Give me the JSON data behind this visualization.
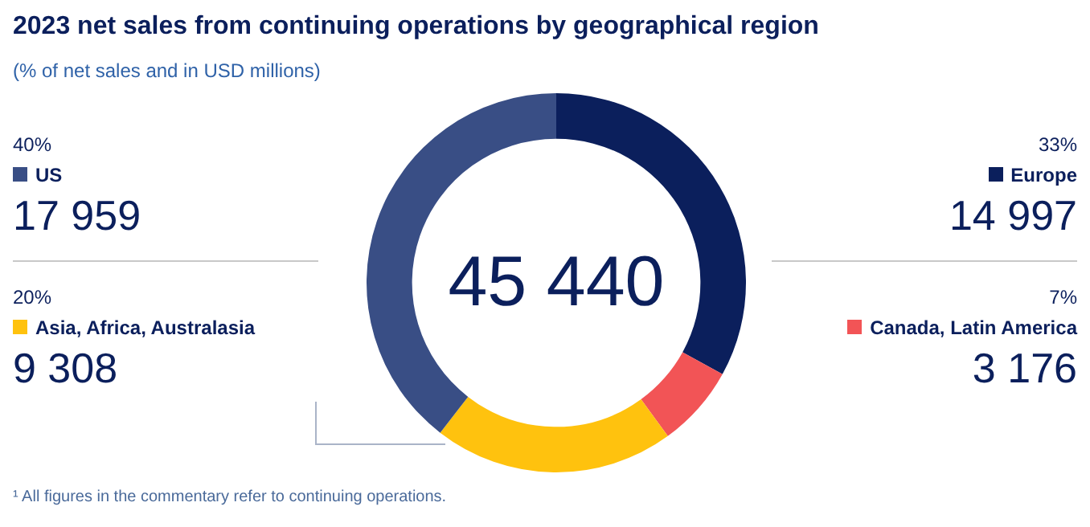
{
  "chart_data": {
    "type": "donut",
    "title": "2023 net sales from continuing operations by geographical region",
    "subtitle": "(% of net sales and in USD millions)",
    "categories": [
      "Europe",
      "Canada, Latin America",
      "Asia, Africa, Australasia",
      "US"
    ],
    "values": [
      14997,
      3176,
      9308,
      17959
    ],
    "value_labels": [
      "14 997",
      "3 176",
      "9 308",
      "17 959"
    ],
    "colors": [
      "#0b1f5c",
      "#f25456",
      "#ffc20e",
      "#394e85"
    ],
    "legend": "left",
    "annotations": [
      {
        "text": "33%",
        "x": "Europe"
      },
      {
        "text": "7%",
        "x": "Canada, Latin America"
      },
      {
        "text": "20%",
        "x": "Asia, Africa, Australasia"
      },
      {
        "text": "40%",
        "x": "US"
      },
      "45 440",
      "¹ All figures in the commentary refer to continuing operations."
    ]
  }
}
